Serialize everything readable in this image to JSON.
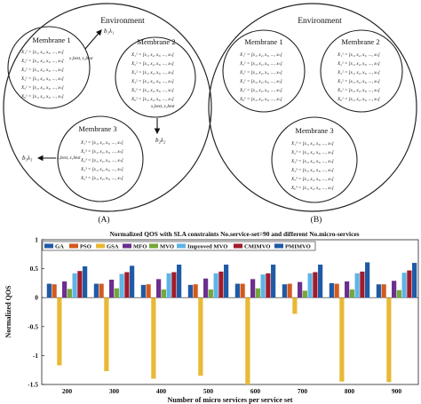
{
  "diagram": {
    "panel_a": {
      "environment_label": "Environment",
      "membranes": [
        {
          "label": "Membrane 1",
          "rows": [
            "X₁¹ = [x₁, x₂, x₃, ..., xₙ]",
            "X₂¹ = [x₁, x₂, x₃, ..., xₙ]",
            "X₃¹ = [x₁, x₂, x₃, ..., xₙ]",
            "X₄¹ = [x₁, x₂, x₃, ..., xₙ]",
            "X₅¹ = [x₁, x₂, x₃, ..., xₙ]",
            "X₆¹ = [x₁, x₂, x₃, ..., xₙ]"
          ]
        },
        {
          "label": "Membrane 2",
          "rows": [
            "X₁² = [x₁, x₂, x₃, ..., xₙ]",
            "X₂² = [x₁, x₂, x₃, ..., xₙ]",
            "X₃² = [x₁, x₂, x₃, ..., xₙ]",
            "X₄² = [x₁, x₂, x₃, ..., xₙ]",
            "X₅² = [x₁, x₂, x₃, ..., xₙ]",
            "X₆² = [x₁, x₂, x₃, ..., xₙ]"
          ]
        },
        {
          "label": "Membrane 3",
          "rows": [
            "X₁³ = [x₁, x₂, x₃, ..., xₙ]",
            "X₂³ = [x₁, x₂, x₃, ..., xₙ]",
            "X₃³ = [x₁, x₂, x₃, ..., xₙ]",
            "X₄³ = [x₁, x₂, x₃, ..., xₙ]",
            "X₅³ = [x₁, x₂, x₃, ..., xₙ]"
          ]
        }
      ],
      "arrow_labels": {
        "top": "b₁λ₁",
        "middle": "b₂λ₂",
        "left": "b₃λ₃"
      },
      "best_labels": {
        "m1": "x₁best, x₂best",
        "m2": "x₂best, x₃best",
        "m3": "x₃best, x₁best"
      },
      "caption": "(A)"
    },
    "panel_b": {
      "environment_label": "Environment",
      "membranes": [
        {
          "label": "Membrane 1",
          "rows": [
            "X₁¹ = [x₁, x₂, x₃, ..., xₙ]",
            "X₂¹ = [x₁, x₂, x₃, ..., xₙ]",
            "X₃¹ = [x₁, x₂, x₃, ..., xₙ]",
            "X₄¹ = [x₁, x₂, x₃, ..., xₙ]",
            "X₅¹ = [x₁, x₂, x₃, ..., xₙ]",
            "X₆¹ = [x₁, x₂, x₃, ..., xₙ]"
          ]
        },
        {
          "label": "Membrane 2",
          "rows": [
            "X₁² = [x₁, x₂, x₃, ..., xₙ]",
            "X₂² = [x₁, x₂, x₃, ..., xₙ]",
            "X₃² = [x₁, x₂, x₃, ..., xₙ]",
            "X₄² = [x₁, x₂, x₃, ..., xₙ]",
            "X₅² = [x₁, x₂, x₃, ..., xₙ]",
            "X₆² = [x₁, x₂, x₃, ..., xₙ]"
          ]
        },
        {
          "label": "Membrane 3",
          "rows": [
            "X₁³ = [x₁, x₂, x₃, ..., xₙ]",
            "X₂³ = [x₁, x₂, x₃, ..., xₙ]",
            "X₃³ = [x₁, x₂, x₃, ..., xₙ]",
            "X₄³ = [x₁, x₂, x₃, ..., xₙ]",
            "X₅³ = [x₁, x₂, x₃, ..., xₙ]",
            "X₆³ = [x₁, x₂, x₃, ..., xₙ]"
          ]
        }
      ],
      "caption": "(B)"
    }
  },
  "chart_data": {
    "type": "bar",
    "title": "Normalized QOS with SLA constraints  No.service-set=90 and different No.micro-services",
    "xlabel": "Number of micro services per service set",
    "ylabel": "Normalized QOS",
    "categories": [
      "200",
      "300",
      "400",
      "500",
      "600",
      "700",
      "800",
      "900"
    ],
    "ylim": [
      -1.5,
      1
    ],
    "yticks": [
      "1",
      "0.5",
      "0",
      "-0.5",
      "-1",
      "-1.5"
    ],
    "grid": false,
    "legend_position": "top",
    "series": [
      {
        "name": "GA",
        "color": "#1f5aa6",
        "values": [
          0.24,
          0.24,
          0.22,
          0.22,
          0.24,
          0.23,
          0.25,
          0.23
        ]
      },
      {
        "name": "PSO",
        "color": "#d35a1e",
        "values": [
          0.23,
          0.24,
          0.23,
          0.23,
          0.24,
          0.24,
          0.24,
          0.23
        ]
      },
      {
        "name": "GSA",
        "color": "#e8b935",
        "values": [
          -1.17,
          -1.27,
          -1.4,
          -1.35,
          -1.5,
          -0.28,
          -1.45,
          -1.46
        ]
      },
      {
        "name": "MFO",
        "color": "#6b2f8e",
        "values": [
          0.28,
          0.31,
          0.32,
          0.33,
          0.32,
          0.27,
          0.28,
          0.29
        ]
      },
      {
        "name": "MVO",
        "color": "#74a83a",
        "values": [
          0.15,
          0.16,
          0.14,
          0.14,
          0.16,
          0.12,
          0.14,
          0.13
        ]
      },
      {
        "name": "Improved MVO",
        "color": "#5fb4e6",
        "values": [
          0.42,
          0.41,
          0.42,
          0.42,
          0.4,
          0.42,
          0.42,
          0.43
        ]
      },
      {
        "name": "CMIMVO",
        "color": "#a01c2c",
        "values": [
          0.46,
          0.44,
          0.44,
          0.45,
          0.42,
          0.44,
          0.45,
          0.47
        ]
      },
      {
        "name": "PMIMVO",
        "color": "#1f5aa6",
        "values": [
          0.54,
          0.55,
          0.57,
          0.57,
          0.57,
          0.57,
          0.61,
          0.6
        ]
      }
    ]
  }
}
